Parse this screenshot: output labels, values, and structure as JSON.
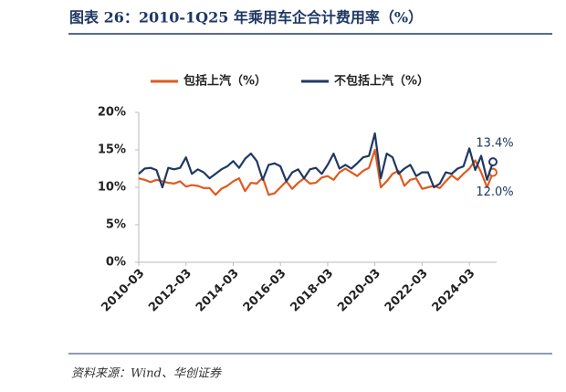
{
  "chart_data": {
    "type": "line",
    "title": "图表 26：2010-1Q25 年乘用车企合计费用率（%）",
    "categories": [
      "2010-03",
      null,
      null,
      null,
      null,
      null,
      null,
      null,
      "2012-03",
      null,
      null,
      null,
      null,
      null,
      null,
      null,
      "2014-03",
      null,
      null,
      null,
      null,
      null,
      null,
      null,
      "2016-03",
      null,
      null,
      null,
      null,
      null,
      null,
      null,
      "2018-03",
      null,
      null,
      null,
      null,
      null,
      null,
      null,
      "2020-03",
      null,
      null,
      null,
      null,
      null,
      null,
      null,
      "2022-03",
      null,
      null,
      null,
      null,
      null,
      null,
      null,
      "2024-03",
      null,
      null,
      null,
      null
    ],
    "series": [
      {
        "name": "包括上汽（%）",
        "color": "#e05a1e",
        "values": [
          11.2,
          11.0,
          10.7,
          11.0,
          10.8,
          10.6,
          10.5,
          10.8,
          10.1,
          10.3,
          10.2,
          9.9,
          9.9,
          9.0,
          9.8,
          10.2,
          10.8,
          11.2,
          9.5,
          10.6,
          10.5,
          11.3,
          9.0,
          9.2,
          10.0,
          10.8,
          9.8,
          10.6,
          11.2,
          10.5,
          10.6,
          11.3,
          11.5,
          11.0,
          12.0,
          12.5,
          12.0,
          11.5,
          12.2,
          12.6,
          15.0,
          10.0,
          10.8,
          11.8,
          12.2,
          10.2,
          11.0,
          11.2,
          9.8,
          10.0,
          10.2,
          9.9,
          10.8,
          11.6,
          11.0,
          11.8,
          12.5,
          13.6,
          12.0,
          10.0,
          12.0
        ],
        "value_labels": [
          null,
          null,
          null,
          null,
          null,
          null,
          null,
          null,
          null,
          null,
          null,
          null,
          null,
          null,
          null,
          null,
          null,
          null,
          null,
          null,
          null,
          null,
          null,
          null,
          null,
          null,
          null,
          null,
          null,
          null,
          null,
          null,
          null,
          null,
          null,
          null,
          null,
          null,
          null,
          null,
          null,
          null,
          null,
          null,
          null,
          null,
          null,
          null,
          null,
          null,
          null,
          null,
          null,
          null,
          null,
          null,
          null,
          null,
          null,
          null,
          "12.0%"
        ]
      },
      {
        "name": "不包括上汽（%）",
        "color": "#1f3864",
        "values": [
          11.8,
          12.5,
          12.6,
          12.3,
          10.0,
          12.6,
          12.4,
          12.6,
          14.0,
          11.8,
          12.4,
          12.0,
          11.2,
          11.8,
          12.4,
          12.8,
          13.5,
          12.6,
          13.8,
          14.5,
          13.5,
          11.0,
          13.0,
          13.2,
          12.8,
          10.8,
          12.0,
          12.4,
          11.2,
          12.4,
          12.6,
          11.8,
          13.0,
          14.5,
          12.5,
          13.0,
          12.5,
          13.2,
          14.0,
          14.2,
          17.2,
          11.2,
          14.5,
          14.0,
          11.8,
          12.5,
          13.0,
          11.5,
          12.0,
          12.0,
          10.0,
          10.5,
          12.0,
          11.8,
          12.5,
          12.8,
          15.2,
          12.3,
          14.2,
          11.0,
          13.4
        ],
        "value_labels": [
          null,
          null,
          null,
          null,
          null,
          null,
          null,
          null,
          null,
          null,
          null,
          null,
          null,
          null,
          null,
          null,
          null,
          null,
          null,
          null,
          null,
          null,
          null,
          null,
          null,
          null,
          null,
          null,
          null,
          null,
          null,
          null,
          null,
          null,
          null,
          null,
          null,
          null,
          null,
          null,
          null,
          null,
          null,
          null,
          null,
          null,
          null,
          null,
          null,
          null,
          null,
          null,
          null,
          null,
          null,
          null,
          null,
          null,
          null,
          null,
          "13.4%"
        ]
      }
    ],
    "ylim": [
      0,
      20
    ],
    "yticks": [
      {
        "value": 0,
        "label": "0%"
      },
      {
        "value": 5,
        "label": "5%"
      },
      {
        "value": 10,
        "label": "10%"
      },
      {
        "value": 15,
        "label": "15%"
      },
      {
        "value": 20,
        "label": "20%"
      }
    ],
    "grid": false,
    "legend": "top",
    "source": "资料来源：Wind、华创证券"
  }
}
